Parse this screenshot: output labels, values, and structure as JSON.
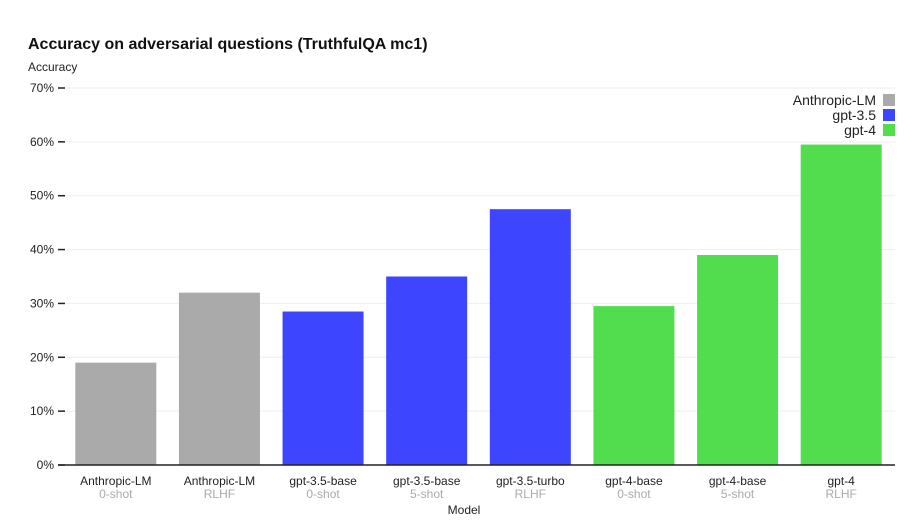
{
  "chart_data": {
    "type": "bar",
    "title": "Accuracy on adversarial questions (TruthfulQA mc1)",
    "ylabel": "Accuracy",
    "xlabel": "Model",
    "ylim": [
      0,
      70
    ],
    "yticks": [
      0,
      10,
      20,
      30,
      40,
      50,
      60,
      70
    ],
    "ytick_suffix": "%",
    "grid": true,
    "legend_position": "top-right",
    "legend": [
      {
        "name": "Anthropic-LM",
        "color": "#aaaaaa"
      },
      {
        "name": "gpt-3.5",
        "color": "#3e45ff"
      },
      {
        "name": "gpt-4",
        "color": "#52dd4f"
      }
    ],
    "bars": [
      {
        "label": "Anthropic-LM",
        "sublabel": "0-shot",
        "value": 19,
        "color": "#aaaaaa"
      },
      {
        "label": "Anthropic-LM",
        "sublabel": "RLHF",
        "value": 32,
        "color": "#aaaaaa"
      },
      {
        "label": "gpt-3.5-base",
        "sublabel": "0-shot",
        "value": 28.5,
        "color": "#3e45ff"
      },
      {
        "label": "gpt-3.5-base",
        "sublabel": "5-shot",
        "value": 35,
        "color": "#3e45ff"
      },
      {
        "label": "gpt-3.5-turbo",
        "sublabel": "RLHF",
        "value": 47.5,
        "color": "#3e45ff"
      },
      {
        "label": "gpt-4-base",
        "sublabel": "0-shot",
        "value": 29.5,
        "color": "#52dd4f"
      },
      {
        "label": "gpt-4-base",
        "sublabel": "5-shot",
        "value": 39,
        "color": "#52dd4f"
      },
      {
        "label": "gpt-4",
        "sublabel": "RLHF",
        "value": 59.5,
        "color": "#52dd4f"
      }
    ]
  }
}
